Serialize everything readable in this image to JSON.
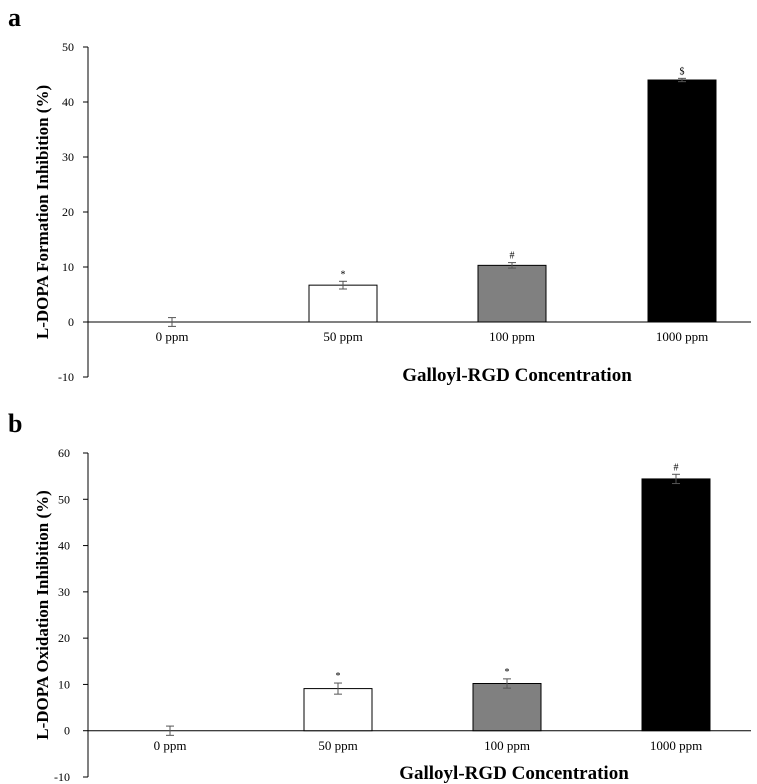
{
  "chart_data": [
    {
      "type": "bar",
      "panel": "a",
      "categories": [
        "0 ppm",
        "50 ppm",
        "100 ppm",
        "1000 ppm"
      ],
      "values": [
        0,
        6.7,
        10.3,
        44.0
      ],
      "errors": [
        0.8,
        0.7,
        0.5,
        0.3
      ],
      "annotations": [
        "",
        "*",
        "#",
        "$"
      ],
      "bar_colors": [
        "#ffffff",
        "#ffffff",
        "#808080",
        "#000000"
      ],
      "ylabel": "L-DOPA Formation Inhibition (%)",
      "xlabel": "Galloyl-RGD Concentration",
      "ylim": [
        -10,
        50
      ],
      "yticks": [
        "-10",
        "0",
        "10",
        "20",
        "30",
        "40",
        "50"
      ],
      "grid": false
    },
    {
      "type": "bar",
      "panel": "b",
      "categories": [
        "0 ppm",
        "50 ppm",
        "100 ppm",
        "1000 ppm"
      ],
      "values": [
        0,
        9.1,
        10.2,
        54.4
      ],
      "errors": [
        1.0,
        1.2,
        1.0,
        1.0
      ],
      "annotations": [
        "",
        "*",
        "*",
        "#"
      ],
      "bar_colors": [
        "#ffffff",
        "#ffffff",
        "#808080",
        "#000000"
      ],
      "ylabel": "L-DOPA Oxidation Inhibition (%)",
      "xlabel": "Galloyl-RGD Concentration",
      "ylim": [
        -10,
        60
      ],
      "yticks": [
        "-10",
        "0",
        "10",
        "20",
        "30",
        "40",
        "50",
        "60"
      ],
      "grid": false
    }
  ]
}
